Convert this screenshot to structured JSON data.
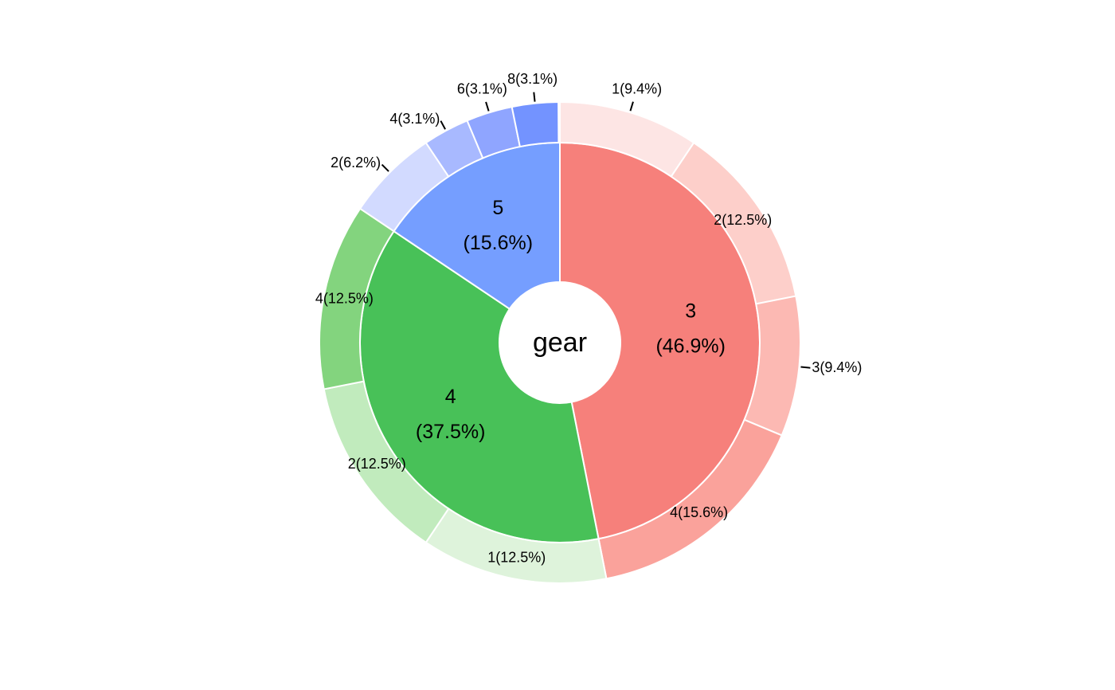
{
  "chart_data": {
    "type": "sunburst",
    "center_label": "gear",
    "inner": {
      "categories": [
        "3",
        "4",
        "5"
      ],
      "values": [
        46.9,
        37.5,
        15.6
      ],
      "value_labels": [
        "(46.9%)",
        "(37.5%)",
        "(15.6%)"
      ],
      "colors": [
        "#F6807B",
        "#48C158",
        "#759EFF"
      ]
    },
    "outer": [
      {
        "categories": [
          "1",
          "2",
          "3",
          "4"
        ],
        "values": [
          9.4,
          12.5,
          9.4,
          15.6
        ],
        "value_labels": [
          "(9.4%)",
          "(12.5%)",
          "(9.4%)",
          "(15.6%)"
        ],
        "colors": [
          "#FDE5E4",
          "#FDCFCA",
          "#FCB9B3",
          "#FAA29B"
        ]
      },
      {
        "categories": [
          "1",
          "2",
          "4"
        ],
        "values": [
          12.5,
          12.5,
          12.5
        ],
        "value_labels": [
          "(12.5%)",
          "(12.5%)",
          "(12.5%)"
        ],
        "colors": [
          "#DEF3DB",
          "#C1EBBD",
          "#83D47E"
        ]
      },
      {
        "categories": [
          "2",
          "4",
          "6",
          "8"
        ],
        "values": [
          6.2,
          3.1,
          3.1,
          3.1
        ],
        "value_labels": [
          "(6.2%)",
          "(3.1%)",
          "(3.1%)",
          "(3.1%)"
        ],
        "colors": [
          "#D2DAFF",
          "#A8B9FF",
          "#8FA5FF",
          "#7393FF"
        ]
      }
    ]
  }
}
